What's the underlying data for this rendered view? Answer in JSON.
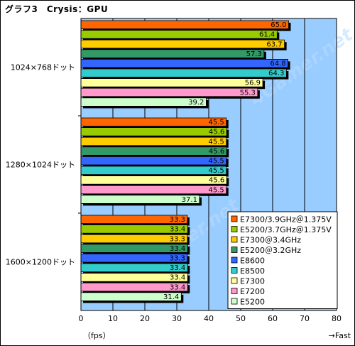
{
  "title": "グラフ3　Crysis：GPU",
  "chart_data": {
    "type": "bar",
    "orientation": "horizontal",
    "title": "グラフ3　Crysis：GPU",
    "xlabel": "（fps）",
    "xlabel_right": "→Fast",
    "xlim": [
      0,
      80
    ],
    "xticks": [
      0,
      10,
      20,
      30,
      40,
      50,
      60,
      70,
      80
    ],
    "grid": "vertical",
    "legend_position": "bottom-right",
    "watermark": "4Gamer.net",
    "categories": [
      "1024×768ドット",
      "1280×1024ドット",
      "1600×1200ドット"
    ],
    "series": [
      {
        "name": "E7300/3.9GHz＠1.375V",
        "color": "#ff6600",
        "values": [
          65.0,
          45.5,
          33.3
        ]
      },
      {
        "name": "E5200/3.7GHz＠1.375V",
        "color": "#99cc00",
        "values": [
          61.4,
          45.6,
          33.4
        ]
      },
      {
        "name": "E7300＠3.4GHz",
        "color": "#ffcc00",
        "values": [
          63.7,
          45.5,
          33.3
        ]
      },
      {
        "name": "E5200＠3.2GHz",
        "color": "#339966",
        "values": [
          57.3,
          45.6,
          33.4
        ]
      },
      {
        "name": "E8600",
        "color": "#3366ff",
        "values": [
          64.8,
          45.5,
          33.3
        ]
      },
      {
        "name": "E8500",
        "color": "#33cccc",
        "values": [
          64.3,
          45.5,
          33.4
        ]
      },
      {
        "name": "E7300",
        "color": "#ffff99",
        "values": [
          56.9,
          45.6,
          33.4
        ]
      },
      {
        "name": "E7200",
        "color": "#ff99cc",
        "values": [
          55.3,
          45.5,
          33.4
        ]
      },
      {
        "name": "E5200",
        "color": "#ccffcc",
        "values": [
          39.2,
          37.1,
          31.4
        ]
      }
    ],
    "value_labels": [
      [
        "65.0",
        "61.4",
        "63.7",
        "57.3",
        "64.8",
        "64.3",
        "56.9",
        "55.3",
        "39.2"
      ],
      [
        "45.5",
        "45.6",
        "45.5",
        "45.6",
        "45.5",
        "45.5",
        "45.6",
        "45.5",
        "37.1"
      ],
      [
        "33.3",
        "33.4",
        "33.3",
        "33.4",
        "33.3",
        "33.4",
        "33.4",
        "33.4",
        "31.4"
      ]
    ]
  }
}
